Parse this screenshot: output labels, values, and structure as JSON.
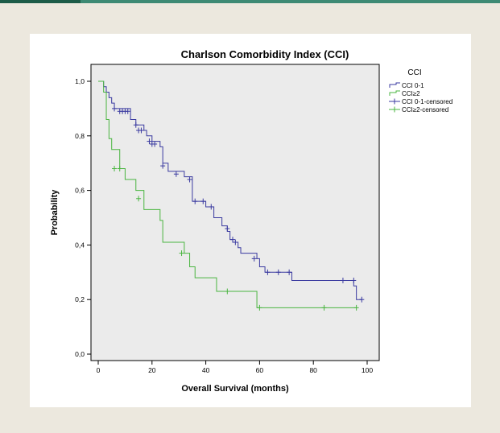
{
  "chart_data": {
    "type": "line",
    "title": "Charlson Comorbidity Index (CCI)",
    "xlabel": "Overall Survival (months)",
    "ylabel": "Probability",
    "xlim": [
      0,
      100
    ],
    "ylim": [
      0,
      1
    ],
    "xticks": [
      0,
      20,
      40,
      60,
      80,
      100
    ],
    "yticks": [
      "0,0",
      "0,2",
      "0,4",
      "0,6",
      "0,8",
      "1,0"
    ],
    "legend": {
      "title": "CCI",
      "position": "right",
      "entries": [
        {
          "label": "CCI 0-1",
          "color": "#3a3aa0",
          "kind": "line"
        },
        {
          "label": "CCI≥2",
          "color": "#4ab540",
          "kind": "line"
        },
        {
          "label": "CCI 0-1-censored",
          "color": "#3a3aa0",
          "kind": "cross"
        },
        {
          "label": "CCI≥2-censored",
          "color": "#4ab540",
          "kind": "cross"
        }
      ]
    },
    "grid": false,
    "plot_background": "#ebebeb",
    "series": [
      {
        "name": "CCI 0-1",
        "color": "#3a3aa0",
        "x": [
          0,
          2,
          3,
          4,
          5,
          6,
          12,
          14,
          17,
          18,
          20,
          23,
          24,
          26,
          32,
          35,
          40,
          43,
          46,
          48,
          49,
          50,
          52,
          53,
          55,
          59,
          60,
          62,
          72,
          95,
          96
        ],
        "y": [
          1.0,
          0.98,
          0.96,
          0.94,
          0.92,
          0.9,
          0.86,
          0.84,
          0.82,
          0.8,
          0.78,
          0.76,
          0.7,
          0.67,
          0.65,
          0.56,
          0.54,
          0.5,
          0.47,
          0.45,
          0.42,
          0.41,
          0.39,
          0.37,
          0.37,
          0.35,
          0.32,
          0.3,
          0.27,
          0.25,
          0.2
        ],
        "censored": [
          [
            6,
            0.9
          ],
          [
            8,
            0.89
          ],
          [
            9,
            0.89
          ],
          [
            10,
            0.89
          ],
          [
            11,
            0.89
          ],
          [
            14,
            0.84
          ],
          [
            15,
            0.82
          ],
          [
            16,
            0.82
          ],
          [
            19,
            0.78
          ],
          [
            20,
            0.77
          ],
          [
            21,
            0.77
          ],
          [
            24,
            0.69
          ],
          [
            29,
            0.66
          ],
          [
            34,
            0.64
          ],
          [
            36,
            0.56
          ],
          [
            39,
            0.56
          ],
          [
            42,
            0.54
          ],
          [
            48,
            0.46
          ],
          [
            50,
            0.42
          ],
          [
            51,
            0.41
          ],
          [
            58,
            0.35
          ],
          [
            63,
            0.3
          ],
          [
            67,
            0.3
          ],
          [
            71,
            0.3
          ],
          [
            91,
            0.27
          ],
          [
            95,
            0.27
          ],
          [
            98,
            0.2
          ]
        ]
      },
      {
        "name": "CCI≥2",
        "color": "#4ab540",
        "x": [
          0,
          2,
          3,
          4,
          5,
          8,
          10,
          14,
          17,
          23,
          24,
          29,
          32,
          34,
          36,
          44,
          59
        ],
        "y": [
          1.0,
          0.96,
          0.86,
          0.79,
          0.75,
          0.68,
          0.64,
          0.6,
          0.53,
          0.49,
          0.41,
          0.41,
          0.37,
          0.32,
          0.28,
          0.23,
          0.17
        ],
        "censored": [
          [
            6,
            0.68
          ],
          [
            8,
            0.68
          ],
          [
            15,
            0.57
          ],
          [
            31,
            0.37
          ],
          [
            48,
            0.23
          ],
          [
            60,
            0.17
          ],
          [
            84,
            0.17
          ],
          [
            96,
            0.17
          ]
        ]
      }
    ]
  }
}
